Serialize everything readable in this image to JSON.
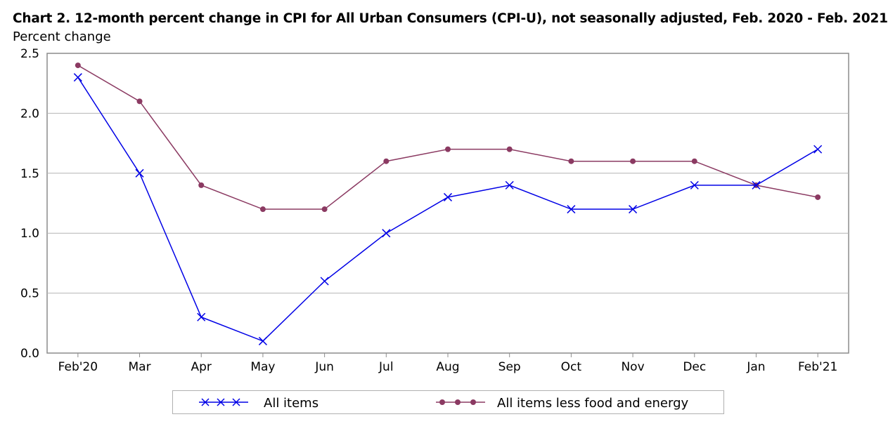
{
  "chart_data": {
    "type": "line",
    "title": "Chart 2. 12-month percent change in CPI for All Urban Consumers (CPI-U), not seasonally adjusted, Feb. 2020 - Feb. 2021",
    "ylabel": "Percent change",
    "xlabel": "",
    "categories": [
      "Feb'20",
      "Mar",
      "Apr",
      "May",
      "Jun",
      "Jul",
      "Aug",
      "Sep",
      "Oct",
      "Nov",
      "Dec",
      "Jan",
      "Feb'21"
    ],
    "ylim": [
      0,
      2.5
    ],
    "yticks": [
      "0.0",
      "0.5",
      "1.0",
      "1.5",
      "2.0",
      "2.5"
    ],
    "grid": true,
    "legend_position": "bottom",
    "series": [
      {
        "name": "All items",
        "marker": "x",
        "color": "#0000e6",
        "values": [
          2.3,
          1.5,
          0.3,
          0.1,
          0.6,
          1.0,
          1.3,
          1.4,
          1.2,
          1.2,
          1.4,
          1.4,
          1.7
        ]
      },
      {
        "name": "All items less food and energy",
        "marker": "dot",
        "color": "#8b3a62",
        "values": [
          2.4,
          2.1,
          1.4,
          1.2,
          1.2,
          1.6,
          1.7,
          1.7,
          1.6,
          1.6,
          1.6,
          1.4,
          1.3
        ]
      }
    ]
  }
}
